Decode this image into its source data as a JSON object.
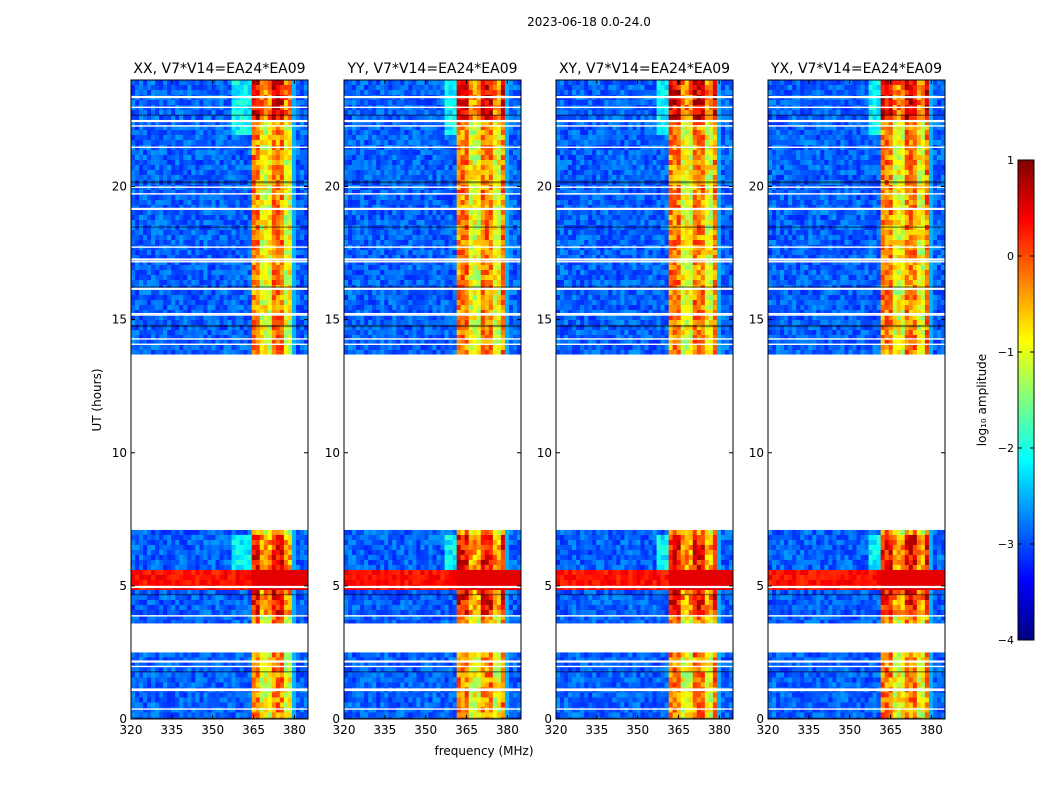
{
  "figure": {
    "suptitle": "2023-06-18 0.0-24.0",
    "xlabel": "frequency (MHz)",
    "ylabel": "UT (hours)",
    "colorbar_label": "log₁₀ amplitude"
  },
  "colors": {
    "background": "#ffffff",
    "axis": "#000000",
    "colormap": [
      "#00007f",
      "#0000ff",
      "#007fff",
      "#00ffff",
      "#7fff7f",
      "#ffff00",
      "#ff7f00",
      "#ff0000",
      "#7f0000"
    ]
  },
  "chart_data": {
    "type": "heatmap",
    "colormap": "jet",
    "xlim": [
      320,
      385
    ],
    "ylim": [
      0,
      24
    ],
    "xticks": [
      320,
      335,
      350,
      365,
      380
    ],
    "yticks": [
      0,
      5,
      10,
      15,
      20
    ],
    "panels": [
      {
        "title": "XX, V7*V14=EA24*EA09"
      },
      {
        "title": "YY, V7*V14=EA24*EA09"
      },
      {
        "title": "XY, V7*V14=EA24*EA09"
      },
      {
        "title": "YX, V7*V14=EA24*EA09"
      }
    ],
    "colorbar": {
      "min": -4,
      "max": 1,
      "ticks": [
        1,
        0,
        -1,
        -2,
        -3,
        -4
      ]
    },
    "data_intervals_hours": [
      [
        0,
        2.5
      ],
      [
        3.6,
        7.1
      ],
      [
        13.7,
        24.0
      ]
    ],
    "gap_rows_hours": [
      0.05,
      0.4,
      1.1,
      1.15,
      1.8,
      2.0,
      2.2,
      3.9,
      4.7,
      5.0,
      14.1,
      14.3,
      14.8,
      15.2,
      15.25,
      16.2,
      16.25,
      17.2,
      17.3,
      17.75,
      18.5,
      19.2,
      19.75,
      20.0,
      20.2,
      21.5,
      22.3,
      22.5,
      22.7,
      23.0,
      23.4
    ]
  }
}
